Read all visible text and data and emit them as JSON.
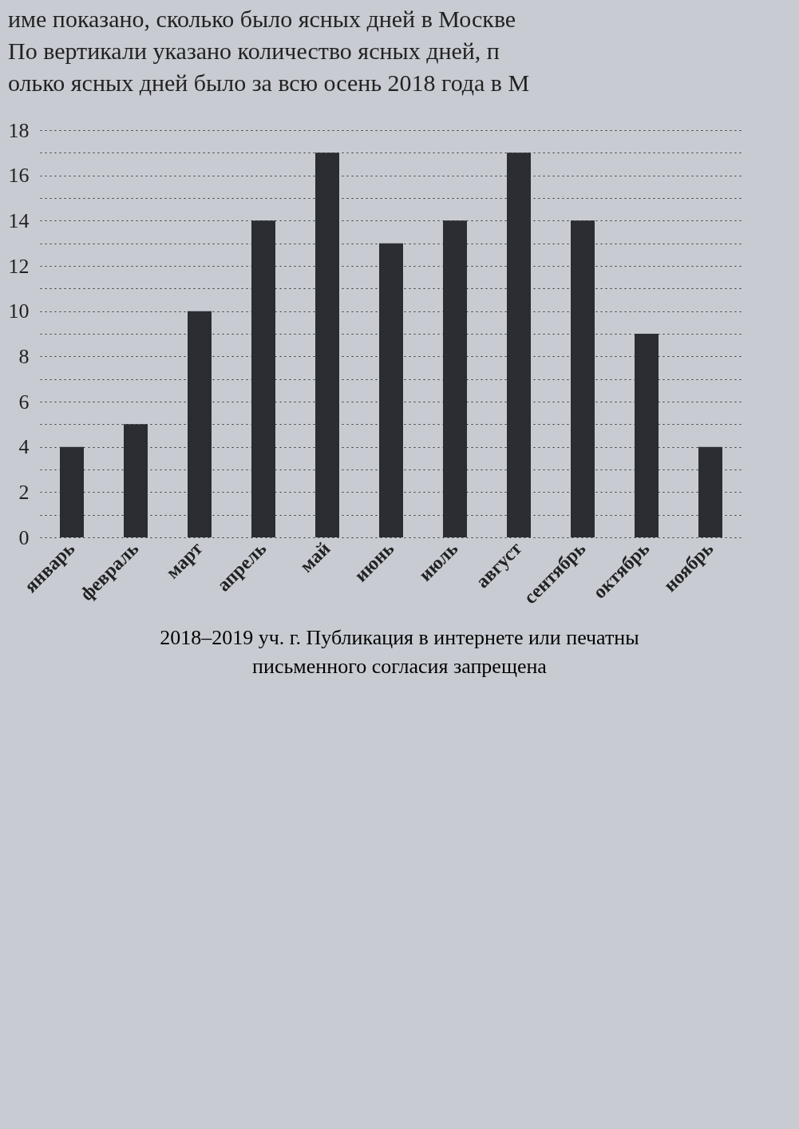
{
  "chart_data": {
    "type": "bar",
    "title": "име показано, сколько было ясных дней в Москве\nПо вертикали указано количество ясных дней, п\nолько ясных дней было за всю осень 2018 года в М",
    "categories": [
      "январь",
      "февраль",
      "март",
      "апрель",
      "май",
      "июнь",
      "июль",
      "август",
      "сентябрь",
      "октябрь",
      "ноябрь"
    ],
    "values": [
      4,
      5,
      10,
      14,
      17,
      13,
      14,
      17,
      14,
      9,
      4
    ],
    "color": "#2b2d33",
    "ylim": [
      0,
      18
    ],
    "yticks": [
      0,
      {
        "value": 1,
        "label": null
      },
      2,
      {
        "value": 3,
        "label": null
      },
      4,
      {
        "value": 5,
        "label": null
      },
      6,
      {
        "value": 7,
        "label": null
      },
      8,
      {
        "value": 9,
        "label": null
      },
      10,
      {
        "value": 11,
        "label": null
      },
      12,
      {
        "value": 13,
        "label": null
      },
      14,
      {
        "value": 15,
        "label": null
      },
      16,
      {
        "value": 17,
        "label": null
      },
      18
    ],
    "grid": "y",
    "annotations": [
      "2018–2019 уч. г. Публикация в интернете или печатны",
      "письменного согласия запрещена"
    ]
  }
}
